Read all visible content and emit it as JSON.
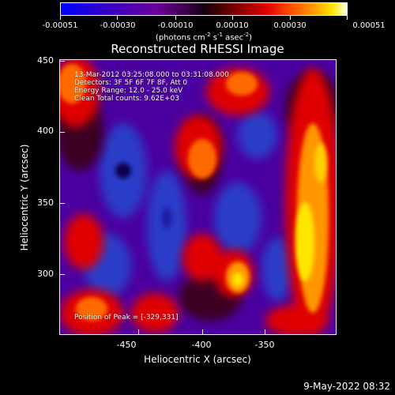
{
  "colorbar": {
    "labels": [
      "-0.00051",
      "-0.00030",
      "-0.00010",
      "0.00010",
      "0.00030",
      "0.00051"
    ],
    "unit_text": "(photons cm",
    "unit_exp1": "-2",
    "unit_mid1": " s",
    "unit_exp2": "-1",
    "unit_mid2": " asec",
    "unit_exp3": "-2",
    "unit_end": ")"
  },
  "plot": {
    "title": "Reconstructed RHESSI Image",
    "overlay": {
      "line1": "13-Mar-2012 03:25:08.000 to 03:31:08.000",
      "line2": "Detectors: 3F 5F 6F 7F 8F, Att 0",
      "line3": "Energy Range: 12.0 - 25.0 keV",
      "line4": "Clean     Total counts: 9.62E+03"
    },
    "peak_text": "Position of Peak = [-329,331]",
    "x_axis": {
      "label": "Heliocentric X (arcsec)",
      "ticks": [
        "-450",
        "-400",
        "-350"
      ]
    },
    "y_axis": {
      "label": "Heliocentric Y (arcsec)",
      "ticks": [
        "450",
        "400",
        "350",
        "300"
      ]
    }
  },
  "footer": {
    "date": "9-May-2022 08:32"
  },
  "colors": {
    "background": "#000000",
    "text": "#ffffff",
    "purple": "#4b00a0",
    "blue": "#2a3cc8",
    "red": "#e00000",
    "orange": "#ff6a00",
    "yellow": "#ffe600"
  }
}
